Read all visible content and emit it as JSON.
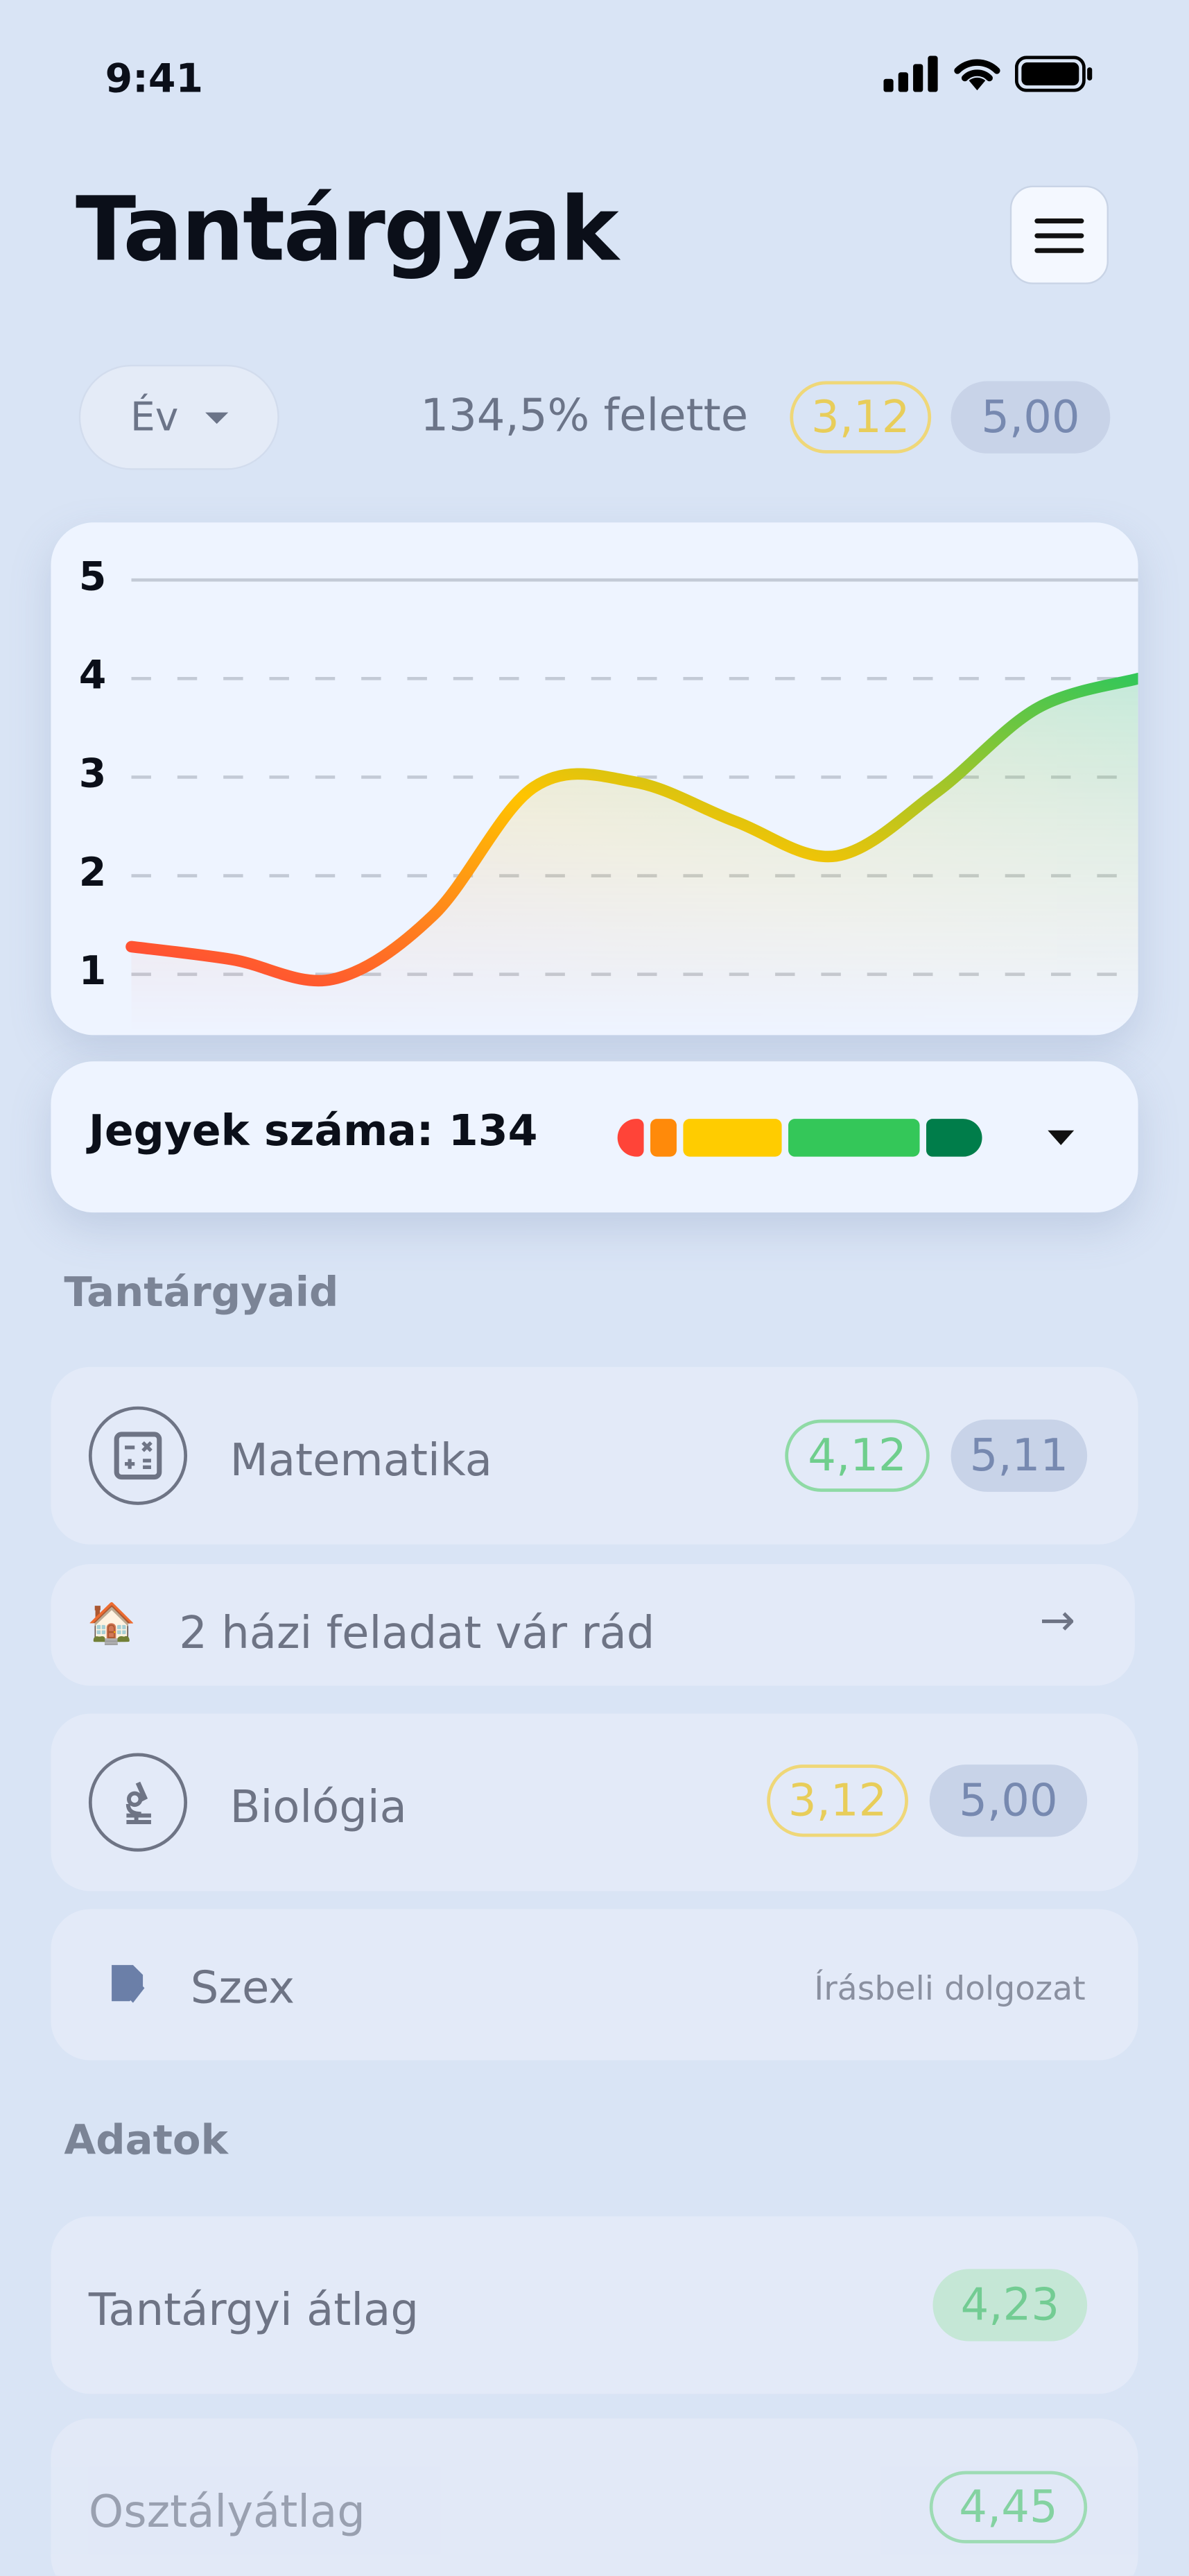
{
  "status_bar": {
    "time": "9:41"
  },
  "header": {
    "title": "Tantárgyak",
    "menu_icon": "hamburger-icon"
  },
  "filter": {
    "period_selected": "Év",
    "above_text": "134,5% felette",
    "avg": "3,12",
    "goal": "5,00"
  },
  "chart_data": {
    "type": "area",
    "yticks": [
      "1",
      "2",
      "3",
      "4",
      "5"
    ],
    "ylim": [
      0.5,
      5
    ],
    "values": [
      1.28,
      1.15,
      0.95,
      1.6,
      2.9,
      2.95,
      2.55,
      2.2,
      2.85,
      3.7,
      4.0
    ],
    "grid": "horizontal dashed",
    "colors": {
      "low": "#ff4438",
      "mid": "#ffc400",
      "high": "#34c759"
    }
  },
  "grade_count": {
    "label": "Jegyek száma: 134",
    "distribution": [
      {
        "grade": 1,
        "count": 8,
        "color": "#ff4438"
      },
      {
        "grade": 2,
        "count": 10,
        "color": "#ff8a0a"
      },
      {
        "grade": 3,
        "count": 40,
        "color": "#ffcc00"
      },
      {
        "grade": 4,
        "count": 53,
        "color": "#34c759"
      },
      {
        "grade": 5,
        "count": 23,
        "color": "#007d4a"
      }
    ]
  },
  "subjects_section": {
    "title": "Tantárgyaid"
  },
  "subjects": [
    {
      "name": "Matematika",
      "icon": "calculator-icon",
      "avg": "4,12",
      "class": "5,11"
    },
    {
      "name": "Biológia",
      "icon": "microscope-icon",
      "avg": "3,12",
      "class": "5,00"
    }
  ],
  "homework": {
    "text": "2 házi feladat vár rád",
    "icon": "🏠"
  },
  "exam": {
    "name": "Szex",
    "type": "Írásbeli dolgozat"
  },
  "data_section": {
    "title": "Adatok",
    "rows": [
      {
        "label": "Tantárgyi átlag",
        "value": "4,23"
      },
      {
        "label": "Osztályátlag",
        "value": "4,45"
      }
    ]
  }
}
